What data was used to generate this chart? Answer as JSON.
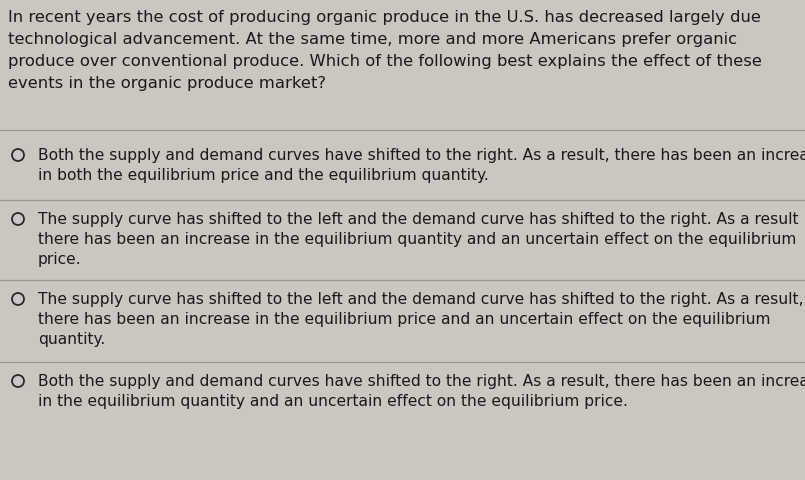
{
  "background_color": "#cac6c0",
  "text_color": "#1a1a1a",
  "question_lines": [
    "In recent years the cost of producing organic produce in the U.S. has decreased largely due",
    "technological advancement. At the same time, more and more Americans prefer organic",
    "produce over conventional produce. Which of the following best explains the effect of these",
    "events in the organic produce market?"
  ],
  "options": [
    {
      "lines": [
        "Both the supply and demand curves have shifted to the right. As a result, there has been an increase",
        "in both the equilibrium price and the equilibrium quantity."
      ]
    },
    {
      "lines": [
        "The supply curve has shifted to the left and the demand curve has shifted to the right. As a result",
        "there has been an increase in the equilibrium quantity and an uncertain effect on the equilibrium",
        "price."
      ]
    },
    {
      "lines": [
        "The supply curve has shifted to the left and the demand curve has shifted to the right. As a result,",
        "there has been an increase in the equilibrium price and an uncertain effect on the equilibrium",
        "quantity."
      ]
    },
    {
      "lines": [
        "Both the supply and demand curves have shifted to the right. As a result, there has been an increase",
        "in the equilibrium quantity and an uncertain effect on the equilibrium price."
      ]
    }
  ],
  "font_size_question": 11.8,
  "font_size_options": 11.2,
  "line_color": "#9a9590",
  "circle_color": "#2a2a2a"
}
